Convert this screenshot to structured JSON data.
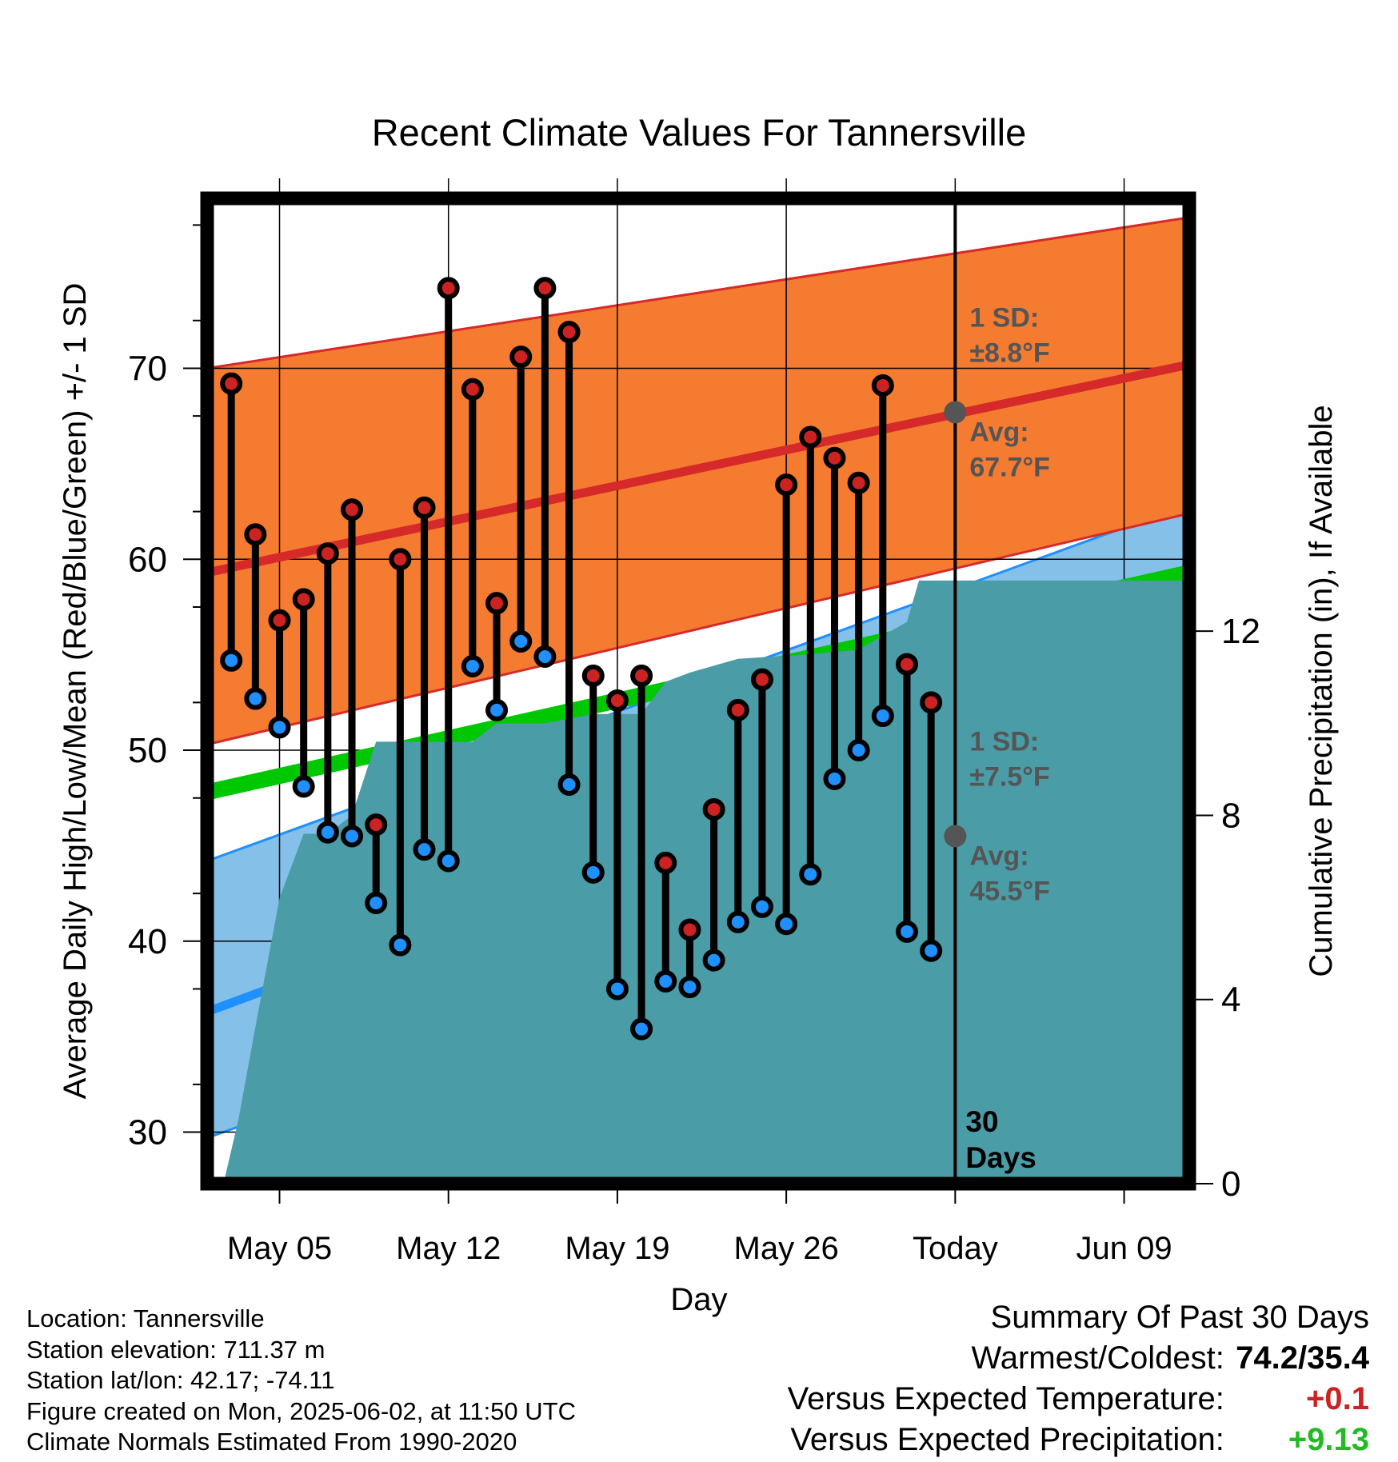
{
  "chart_data": {
    "type": "line",
    "title": "Recent Climate Values For Tannersville",
    "xlabel": "Day",
    "ylabel": "Average Daily High/Low/Mean (Red/Blue/Green) +/- 1 SD",
    "y2label": "Cumulative Precipitation (in), If Available",
    "ylim": [
      27.3,
      78.9
    ],
    "y2lim": [
      0,
      21.4
    ],
    "yticks": [
      "30",
      "40",
      "50",
      "60",
      "70"
    ],
    "y2ticks": [
      "0",
      "4",
      "8",
      "12"
    ],
    "xticks": [
      {
        "day": 5,
        "label": "May 05"
      },
      {
        "day": 12,
        "label": "May 12"
      },
      {
        "day": 19,
        "label": "May 19"
      },
      {
        "day": 26,
        "label": "May 26"
      },
      {
        "day": 33,
        "label": "Today"
      },
      {
        "day": 40,
        "label": "Jun 09"
      }
    ],
    "grid": true,
    "days": [
      3,
      4,
      5,
      6,
      7,
      8,
      9,
      10,
      11,
      12,
      13,
      14,
      15,
      16,
      17,
      18,
      19,
      20,
      21,
      22,
      23,
      24,
      25,
      26,
      27,
      28,
      29,
      30,
      31,
      32
    ],
    "highs": [
      69.2,
      61.3,
      56.8,
      57.9,
      60.3,
      62.6,
      46.1,
      60.0,
      62.7,
      74.2,
      68.9,
      57.7,
      70.6,
      74.2,
      71.9,
      53.9,
      52.6,
      53.9,
      44.1,
      40.6,
      46.9,
      52.1,
      53.7,
      63.9,
      66.4,
      65.3,
      64.0,
      69.1,
      54.5,
      52.5
    ],
    "lows": [
      54.7,
      52.7,
      51.2,
      48.1,
      45.7,
      45.5,
      42.0,
      39.8,
      44.8,
      44.2,
      54.4,
      52.1,
      55.7,
      54.9,
      48.2,
      43.6,
      37.5,
      35.4,
      37.9,
      37.6,
      39.0,
      41.0,
      41.8,
      40.9,
      43.5,
      48.5,
      50.0,
      51.8,
      40.5,
      39.5
    ],
    "normal_high": {
      "start": 59.3,
      "end": 70.2
    },
    "normal_low": {
      "start": 36.3,
      "end": 55.4
    },
    "normal_mean": {
      "start": 47.8,
      "end": 59.3
    },
    "high_sd_band": {
      "start": [
        50.3,
        70.0
      ],
      "end": [
        62.4,
        77.9
      ]
    },
    "low_sd_band": {
      "start": [
        29.7,
        44.2
      ],
      "end": [
        47.9,
        62.9
      ]
    },
    "precip_cumulative": [
      {
        "day": 2.0,
        "value": 0.0
      },
      {
        "day": 2.7,
        "value": 0.05
      },
      {
        "day": 3.3,
        "value": 1.4
      },
      {
        "day": 4.0,
        "value": 3.4
      },
      {
        "day": 5.0,
        "value": 6.2
      },
      {
        "day": 6.0,
        "value": 7.6
      },
      {
        "day": 7.0,
        "value": 7.6
      },
      {
        "day": 8.0,
        "value": 8.0
      },
      {
        "day": 9.0,
        "value": 9.6
      },
      {
        "day": 13.0,
        "value": 9.6
      },
      {
        "day": 14.0,
        "value": 10.0
      },
      {
        "day": 16.0,
        "value": 10.0
      },
      {
        "day": 18.0,
        "value": 10.2
      },
      {
        "day": 20.0,
        "value": 10.2
      },
      {
        "day": 21.0,
        "value": 10.9
      },
      {
        "day": 22.0,
        "value": 11.1
      },
      {
        "day": 24.0,
        "value": 11.4
      },
      {
        "day": 27.0,
        "value": 11.5
      },
      {
        "day": 29.0,
        "value": 11.6
      },
      {
        "day": 31.0,
        "value": 12.2
      },
      {
        "day": 31.5,
        "value": 13.1
      },
      {
        "day": 42.7,
        "value": 13.1
      }
    ],
    "annotations": [
      {
        "day": 33,
        "value": 67.7,
        "sd_text": "±8.8°F",
        "avg_text": "67.7°F"
      },
      {
        "day": 33,
        "value": 45.5,
        "sd_text": "±7.5°F",
        "avg_text": "45.5°F"
      }
    ],
    "sd_label": "1 SD:",
    "avg_label": "Avg:",
    "days_marker": "30\nDays"
  },
  "location": "Location: Tannersville",
  "elevation": "Station elevation: 711.37 m",
  "latlon": "Station lat/lon: 42.17; -74.11",
  "created": "Figure created on Mon, 2025-06-02, at 11:50 UTC",
  "normals": "Climate Normals Estimated From 1990-2020",
  "summary": {
    "title": "Summary Of Past 30 Days",
    "warm_label": "Warmest/Coldest:",
    "warm_value": "74.2/35.4",
    "temp_label": "Versus Expected Temperature:",
    "temp_value": "+0.1",
    "precip_label": "Versus Expected Precipitation:",
    "precip_value": "+9.13"
  },
  "colors": {
    "high_band": "#f47b30",
    "high_line": "#d62a2a",
    "low_band": "#84c0e8",
    "low_line": "#1e90ff",
    "mean_line": "#00c800",
    "precip": "#4a9ca6",
    "annotation": "#555555",
    "temp_value": "#cc2222",
    "precip_value": "#22bb22"
  }
}
